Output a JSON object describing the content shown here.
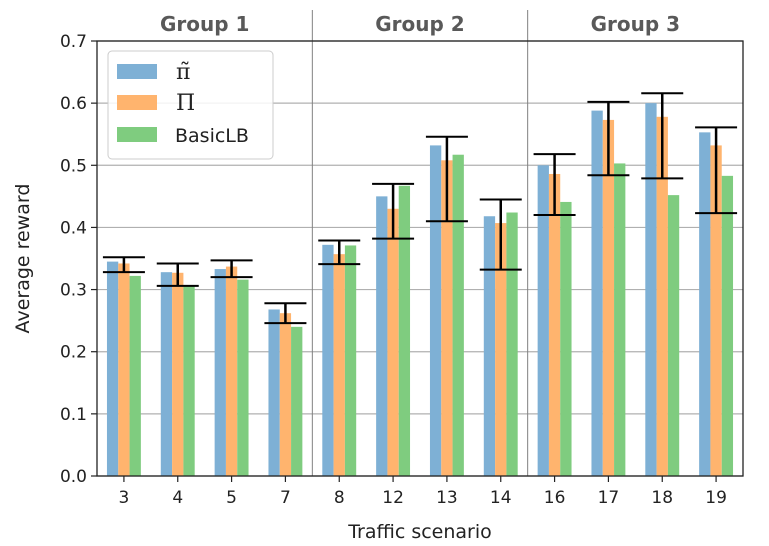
{
  "chart_data": {
    "type": "bar",
    "title": "",
    "xlabel": "Traffic scenario",
    "ylabel": "Average reward",
    "ylim": [
      0,
      0.7
    ],
    "yticks": [
      "0.0",
      "0.1",
      "0.2",
      "0.3",
      "0.4",
      "0.5",
      "0.6",
      "0.7"
    ],
    "grid": "horizontal",
    "legend_position": "upper-left",
    "categories": [
      "3",
      "4",
      "5",
      "7",
      "8",
      "12",
      "13",
      "14",
      "16",
      "17",
      "18",
      "19"
    ],
    "groups": [
      {
        "label": "Group 1",
        "categories": [
          "3",
          "4",
          "5",
          "7"
        ]
      },
      {
        "label": "Group 2",
        "categories": [
          "8",
          "12",
          "13",
          "14"
        ]
      },
      {
        "label": "Group 3",
        "categories": [
          "16",
          "17",
          "18",
          "19"
        ]
      }
    ],
    "series": [
      {
        "name": "π̃",
        "color": "#7eb0d5",
        "values": [
          0.345,
          0.328,
          0.333,
          0.268,
          0.372,
          0.45,
          0.532,
          0.418,
          0.5,
          0.588,
          0.6,
          0.553
        ]
      },
      {
        "name": "Π",
        "color": "#ffb46e",
        "values": [
          0.342,
          0.327,
          0.337,
          0.262,
          0.357,
          0.43,
          0.508,
          0.407,
          0.486,
          0.573,
          0.578,
          0.532
        ]
      },
      {
        "name": "BasicLB",
        "color": "#7fcc7f",
        "values": [
          0.322,
          0.307,
          0.316,
          0.24,
          0.371,
          0.467,
          0.517,
          0.424,
          0.441,
          0.503,
          0.452,
          0.483
        ]
      }
    ],
    "error_bars": {
      "series": "Π",
      "lower": [
        0.328,
        0.306,
        0.32,
        0.246,
        0.341,
        0.382,
        0.41,
        0.332,
        0.42,
        0.484,
        0.479,
        0.423
      ],
      "upper": [
        0.352,
        0.342,
        0.347,
        0.278,
        0.379,
        0.47,
        0.546,
        0.445,
        0.518,
        0.602,
        0.616,
        0.561
      ]
    }
  }
}
